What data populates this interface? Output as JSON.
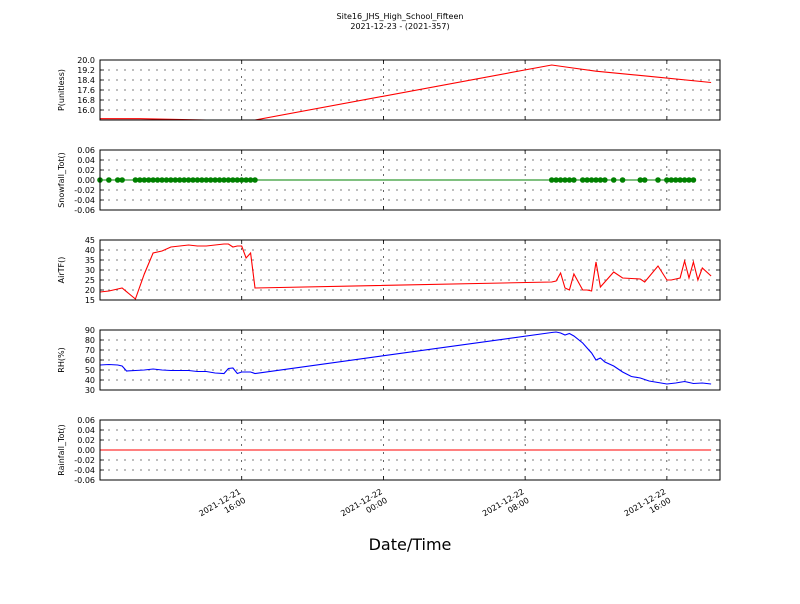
{
  "figure": {
    "title_line1": "Site16_JHS_High_School_Fifteen",
    "title_line2": "2021-12-23 - (2021-357)",
    "xlabel": "Date/Time"
  },
  "chart_data": {
    "type": "line",
    "x_range": [
      "2021-12-21 08:00",
      "2021-12-22 19:00"
    ],
    "x_ticks": [
      {
        "line1": "2021-12-21",
        "line2": "16:00",
        "value": "2021-12-21 16:00"
      },
      {
        "line1": "2021-12-22",
        "line2": "00:00",
        "value": "2021-12-22 00:00"
      },
      {
        "line1": "2021-12-22",
        "line2": "08:00",
        "value": "2021-12-22 08:00"
      },
      {
        "line1": "2021-12-22",
        "line2": "16:00",
        "value": "2021-12-22 16:00"
      }
    ],
    "grid": true,
    "panels": [
      {
        "id": "p",
        "ylabel": "P(unitless)",
        "ylim": [
          15.2,
          20.0
        ],
        "yticks": [
          16.0,
          16.8,
          17.6,
          18.4,
          19.2,
          20.0
        ],
        "ytick_labels": [
          "16.0",
          "16.8",
          "17.6",
          "18.4",
          "19.2",
          "20.0"
        ],
        "color": "#ff0000",
        "marker": false,
        "series": [
          {
            "x": [
              "2021-12-21 08:00",
              "2021-12-21 10:15",
              "2021-12-21 14:00",
              "2021-12-21 16:45",
              "2021-12-22 09:30",
              "2021-12-22 10:30",
              "2021-12-22 12:00",
              "2021-12-22 15:00",
              "2021-12-22 18:30"
            ],
            "y": [
              15.3,
              15.3,
              15.2,
              15.2,
              19.6,
              19.4,
              19.1,
              18.7,
              18.2
            ]
          }
        ]
      },
      {
        "id": "snow",
        "ylabel": "Snowfall_Tot()",
        "ylim": [
          -0.06,
          0.06
        ],
        "yticks": [
          -0.06,
          -0.04,
          -0.02,
          0.0,
          0.02,
          0.04,
          0.06
        ],
        "ytick_labels": [
          "-0.06",
          "-0.04",
          "-0.02",
          "0.00",
          "0.02",
          "0.04",
          "0.06"
        ],
        "color": "#008000",
        "marker": true,
        "series": [
          {
            "x": [
              "2021-12-21 08:00",
              "2021-12-21 08:30",
              "2021-12-21 09:00",
              "2021-12-21 09:15",
              "2021-12-21 10:00",
              "2021-12-21 10:15",
              "2021-12-21 10:30",
              "2021-12-21 10:45",
              "2021-12-21 11:00",
              "2021-12-21 11:15",
              "2021-12-21 11:30",
              "2021-12-21 11:45",
              "2021-12-21 12:00",
              "2021-12-21 12:15",
              "2021-12-21 12:30",
              "2021-12-21 12:45",
              "2021-12-21 13:00",
              "2021-12-21 13:15",
              "2021-12-21 13:30",
              "2021-12-21 13:45",
              "2021-12-21 14:00",
              "2021-12-21 14:15",
              "2021-12-21 14:30",
              "2021-12-21 14:45",
              "2021-12-21 15:00",
              "2021-12-21 15:15",
              "2021-12-21 15:30",
              "2021-12-21 15:45",
              "2021-12-21 16:00",
              "2021-12-21 16:15",
              "2021-12-21 16:30",
              "2021-12-21 16:45",
              "2021-12-22 09:30",
              "2021-12-22 09:45",
              "2021-12-22 10:00",
              "2021-12-22 10:15",
              "2021-12-22 10:30",
              "2021-12-22 10:45",
              "2021-12-22 11:15",
              "2021-12-22 11:30",
              "2021-12-22 11:45",
              "2021-12-22 12:00",
              "2021-12-22 12:15",
              "2021-12-22 12:30",
              "2021-12-22 13:00",
              "2021-12-22 13:30",
              "2021-12-22 14:30",
              "2021-12-22 14:45",
              "2021-12-22 15:30",
              "2021-12-22 16:00",
              "2021-12-22 16:15",
              "2021-12-22 16:30",
              "2021-12-22 16:45",
              "2021-12-22 17:00",
              "2021-12-22 17:15",
              "2021-12-22 17:30"
            ],
            "y": [
              0,
              0,
              0,
              0,
              0,
              0,
              0,
              0,
              0,
              0,
              0,
              0,
              0,
              0,
              0,
              0,
              0,
              0,
              0,
              0,
              0,
              0,
              0,
              0,
              0,
              0,
              0,
              0,
              0,
              0,
              0,
              0,
              0,
              0,
              0,
              0,
              0,
              0,
              0,
              0,
              0,
              0,
              0,
              0,
              0,
              0,
              0,
              0,
              0,
              0,
              0,
              0,
              0,
              0,
              0,
              0
            ]
          }
        ]
      },
      {
        "id": "airt",
        "ylabel": "AirTF()",
        "ylim": [
          15,
          45
        ],
        "yticks": [
          15,
          20,
          25,
          30,
          35,
          40,
          45
        ],
        "ytick_labels": [
          "15",
          "20",
          "25",
          "30",
          "35",
          "40",
          "45"
        ],
        "color": "#ff0000",
        "marker": false,
        "series": [
          {
            "x": [
              "2021-12-21 08:00",
              "2021-12-21 08:30",
              "2021-12-21 09:00",
              "2021-12-21 09:15",
              "2021-12-21 10:00",
              "2021-12-21 10:30",
              "2021-12-21 11:00",
              "2021-12-21 11:30",
              "2021-12-21 12:00",
              "2021-12-21 12:30",
              "2021-12-21 13:00",
              "2021-12-21 13:30",
              "2021-12-21 14:00",
              "2021-12-21 14:30",
              "2021-12-21 15:00",
              "2021-12-21 15:15",
              "2021-12-21 15:30",
              "2021-12-21 15:45",
              "2021-12-21 16:00",
              "2021-12-21 16:15",
              "2021-12-21 16:30",
              "2021-12-21 16:45",
              "2021-12-22 09:30",
              "2021-12-22 09:45",
              "2021-12-22 10:00",
              "2021-12-22 10:15",
              "2021-12-22 10:30",
              "2021-12-22 10:45",
              "2021-12-22 11:15",
              "2021-12-22 11:30",
              "2021-12-22 11:45",
              "2021-12-22 12:00",
              "2021-12-22 12:15",
              "2021-12-22 13:00",
              "2021-12-22 13:30",
              "2021-12-22 14:30",
              "2021-12-22 14:45",
              "2021-12-22 15:30",
              "2021-12-22 16:00",
              "2021-12-22 16:15",
              "2021-12-22 16:30",
              "2021-12-22 16:45",
              "2021-12-22 17:00",
              "2021-12-22 17:15",
              "2021-12-22 17:30",
              "2021-12-22 17:45",
              "2021-12-22 18:00",
              "2021-12-22 18:30"
            ],
            "y": [
              19,
              19.5,
              20.5,
              21,
              15.5,
              28,
              38.5,
              39.5,
              41.5,
              42,
              42.5,
              42,
              42,
              42.5,
              43,
              43,
              41.5,
              42,
              42,
              36,
              38.5,
              21,
              24,
              24.5,
              28.5,
              21,
              20,
              28,
              20,
              20,
              19.5,
              34,
              21.5,
              29,
              26,
              25.5,
              24,
              32,
              25,
              25,
              25.5,
              26,
              34.5,
              26,
              34,
              25,
              31,
              27
            ]
          }
        ]
      },
      {
        "id": "rh",
        "ylabel": "RH(%)",
        "ylim": [
          30,
          90
        ],
        "yticks": [
          30,
          40,
          50,
          60,
          70,
          80,
          90
        ],
        "ytick_labels": [
          "30",
          "40",
          "50",
          "60",
          "70",
          "80",
          "90"
        ],
        "color": "#0000ff",
        "marker": false,
        "series": [
          {
            "x": [
              "2021-12-21 08:00",
              "2021-12-21 08:30",
              "2021-12-21 09:00",
              "2021-12-21 09:15",
              "2021-12-21 09:30",
              "2021-12-21 10:00",
              "2021-12-21 10:30",
              "2021-12-21 11:00",
              "2021-12-21 11:30",
              "2021-12-21 12:00",
              "2021-12-21 12:30",
              "2021-12-21 13:00",
              "2021-12-21 13:30",
              "2021-12-21 14:00",
              "2021-12-21 14:30",
              "2021-12-21 15:00",
              "2021-12-21 15:15",
              "2021-12-21 15:30",
              "2021-12-21 15:45",
              "2021-12-21 16:00",
              "2021-12-21 16:15",
              "2021-12-21 16:30",
              "2021-12-21 16:45",
              "2021-12-22 09:30",
              "2021-12-22 09:45",
              "2021-12-22 10:00",
              "2021-12-22 10:15",
              "2021-12-22 10:30",
              "2021-12-22 10:45",
              "2021-12-22 11:15",
              "2021-12-22 11:30",
              "2021-12-22 11:45",
              "2021-12-22 12:00",
              "2021-12-22 12:15",
              "2021-12-22 12:30",
              "2021-12-22 13:00",
              "2021-12-22 13:30",
              "2021-12-22 14:00",
              "2021-12-22 14:30",
              "2021-12-22 15:00",
              "2021-12-22 15:30",
              "2021-12-22 16:00",
              "2021-12-22 16:30",
              "2021-12-22 17:00",
              "2021-12-22 17:30",
              "2021-12-22 18:00",
              "2021-12-22 18:30"
            ],
            "y": [
              55,
              55.5,
              55,
              54,
              49,
              49.5,
              50,
              51,
              50,
              49.5,
              49.5,
              49.5,
              48.5,
              48.5,
              47,
              46.5,
              51.5,
              52,
              46.5,
              48,
              48,
              48,
              46.5,
              87.5,
              88,
              87,
              85,
              86.5,
              84,
              77,
              72,
              67,
              60,
              62,
              58,
              54,
              48,
              43.5,
              42,
              39,
              37.5,
              36,
              37,
              38.5,
              36.5,
              37,
              36
            ]
          }
        ]
      },
      {
        "id": "rain",
        "ylabel": "Rainfall_Tot()",
        "ylim": [
          -0.06,
          0.06
        ],
        "yticks": [
          -0.06,
          -0.04,
          -0.02,
          0.0,
          0.02,
          0.04,
          0.06
        ],
        "ytick_labels": [
          "-0.06",
          "-0.04",
          "-0.02",
          "0.00",
          "0.02",
          "0.04",
          "0.06"
        ],
        "color": "#ff0000",
        "marker": false,
        "series": [
          {
            "x": [
              "2021-12-21 08:00",
              "2021-12-22 18:30"
            ],
            "y": [
              0,
              0
            ]
          }
        ]
      }
    ]
  }
}
